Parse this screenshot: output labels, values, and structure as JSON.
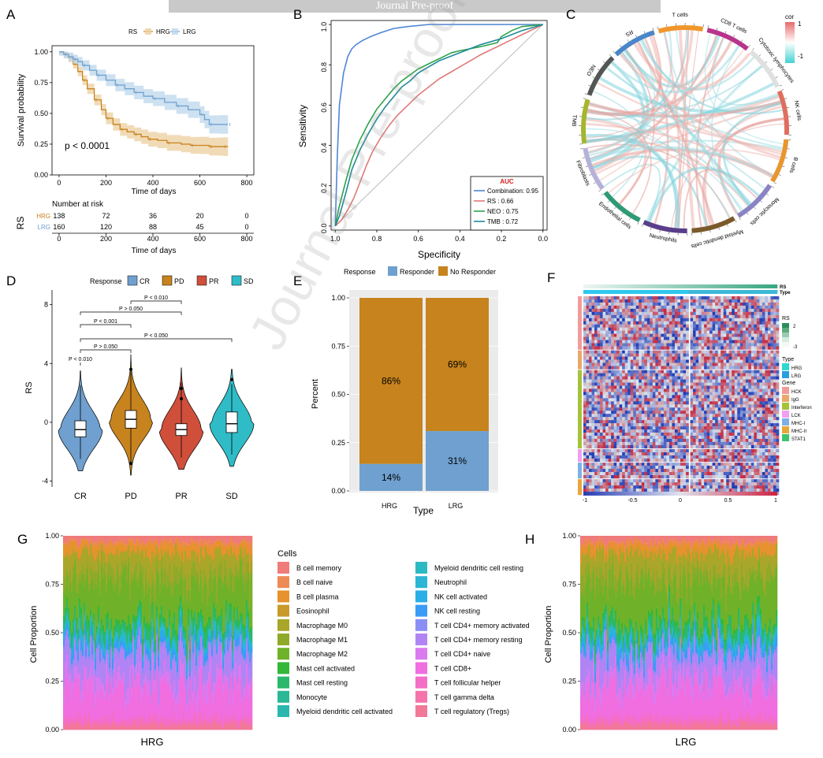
{
  "banner": "Journal Pre-proof",
  "watermark": "Journal Pre-proof",
  "colors": {
    "hrg": "#c7831d",
    "lrg": "#6fa0cf",
    "hrg_fill": "#eccf9f",
    "lrg_fill": "#bcd7ec"
  },
  "chart_data": [
    {
      "panel": "A",
      "type": "line",
      "legend_title": "RS",
      "legend_labels": [
        "HRG",
        "LRG"
      ],
      "xlabel": "Time of days",
      "ylabel": "Survival probability",
      "xticks": [
        "0",
        "200",
        "400",
        "600",
        "800"
      ],
      "yticks": [
        "0.00",
        "0.25",
        "0.50",
        "0.75",
        "1.00"
      ],
      "xlim": [
        -30,
        830
      ],
      "ylim": [
        0,
        1.05
      ],
      "pvalue": "p < 0.0001",
      "series": [
        {
          "name": "HRG",
          "x": [
            0,
            20,
            40,
            60,
            80,
            100,
            120,
            150,
            180,
            200,
            230,
            260,
            290,
            320,
            350,
            380,
            420,
            460,
            520,
            560,
            600,
            640,
            680,
            700,
            720
          ],
          "y": [
            1,
            0.98,
            0.95,
            0.9,
            0.84,
            0.77,
            0.7,
            0.61,
            0.53,
            0.46,
            0.41,
            0.37,
            0.35,
            0.33,
            0.31,
            0.29,
            0.28,
            0.26,
            0.25,
            0.24,
            0.24,
            0.23,
            0.23,
            0.23,
            0.23
          ]
        },
        {
          "name": "LRG",
          "x": [
            0,
            20,
            40,
            60,
            80,
            100,
            130,
            160,
            200,
            240,
            280,
            320,
            360,
            400,
            450,
            500,
            550,
            600,
            620,
            640,
            680,
            720
          ],
          "y": [
            1,
            0.98,
            0.96,
            0.94,
            0.92,
            0.89,
            0.85,
            0.81,
            0.77,
            0.73,
            0.7,
            0.67,
            0.64,
            0.62,
            0.59,
            0.56,
            0.53,
            0.49,
            0.45,
            0.41,
            0.41,
            0.41
          ]
        }
      ],
      "risk_table": {
        "title": "Number at risk",
        "axis_label": "RS",
        "xlabel": "Time of days",
        "xticks": [
          "0",
          "200",
          "400",
          "600",
          "800"
        ],
        "rows": [
          {
            "name": "HRG",
            "values": [
              "138",
              "72",
              "36",
              "20",
              "0"
            ]
          },
          {
            "name": "LRG",
            "values": [
              "160",
              "120",
              "88",
              "45",
              "0"
            ]
          }
        ]
      }
    },
    {
      "panel": "B",
      "type": "line",
      "xlabel": "Specificity",
      "ylabel": "Sensitivity",
      "xticks": [
        "1.0",
        "0.8",
        "0.6",
        "0.4",
        "0.2",
        "0.0"
      ],
      "yticks": [
        "0.0",
        "0.2",
        "0.4",
        "0.6",
        "0.8",
        "1.0"
      ],
      "xlim": [
        1.02,
        -0.02
      ],
      "ylim": [
        -0.02,
        1.02
      ],
      "legend_title": "AUC",
      "series": [
        {
          "name": "Combination: 0.95",
          "color": "#4e86d4",
          "x": [
            1,
            0.99,
            0.98,
            0.96,
            0.94,
            0.92,
            0.9,
            0.87,
            0.83,
            0.78,
            0.72,
            0.65,
            0.55,
            0.45,
            0.3,
            0.15,
            0
          ],
          "y": [
            0,
            0.35,
            0.6,
            0.76,
            0.84,
            0.88,
            0.9,
            0.92,
            0.94,
            0.96,
            0.98,
            0.99,
            1,
            1,
            1,
            1,
            1
          ]
        },
        {
          "name": "RS :  0.66",
          "color": "#e07a78",
          "x": [
            1,
            0.97,
            0.94,
            0.91,
            0.88,
            0.85,
            0.82,
            0.78,
            0.74,
            0.7,
            0.65,
            0.6,
            0.55,
            0.5,
            0.45,
            0.4,
            0.35,
            0.3,
            0.2,
            0.1,
            0
          ],
          "y": [
            0,
            0.03,
            0.08,
            0.14,
            0.22,
            0.3,
            0.37,
            0.44,
            0.5,
            0.55,
            0.6,
            0.65,
            0.69,
            0.73,
            0.76,
            0.79,
            0.82,
            0.85,
            0.9,
            0.95,
            1
          ]
        },
        {
          "name": "NEO :  0.75",
          "color": "#2ca34a",
          "x": [
            1,
            0.98,
            0.95,
            0.92,
            0.88,
            0.84,
            0.8,
            0.76,
            0.72,
            0.68,
            0.64,
            0.6,
            0.56,
            0.52,
            0.48,
            0.44,
            0.4,
            0.3,
            0.22,
            0.2,
            0.15,
            0.1,
            0
          ],
          "y": [
            0,
            0.1,
            0.22,
            0.33,
            0.43,
            0.51,
            0.58,
            0.63,
            0.68,
            0.72,
            0.75,
            0.78,
            0.8,
            0.82,
            0.84,
            0.86,
            0.87,
            0.89,
            0.91,
            0.94,
            0.97,
            0.99,
            1
          ]
        },
        {
          "name": "TMB :  0.72",
          "color": "#1f8a9a",
          "x": [
            1,
            0.98,
            0.95,
            0.92,
            0.88,
            0.84,
            0.8,
            0.76,
            0.72,
            0.68,
            0.64,
            0.6,
            0.55,
            0.5,
            0.45,
            0.4,
            0.35,
            0.3,
            0.2,
            0.1,
            0
          ],
          "y": [
            0,
            0.05,
            0.16,
            0.28,
            0.38,
            0.46,
            0.53,
            0.59,
            0.64,
            0.69,
            0.72,
            0.76,
            0.79,
            0.82,
            0.84,
            0.86,
            0.88,
            0.9,
            0.93,
            0.97,
            1
          ]
        }
      ]
    },
    {
      "panel": "C",
      "type": "chord",
      "legend_title": "cor",
      "legend_ticks": [
        "1",
        "-1"
      ],
      "sectors": [
        {
          "label": "CD8 T cells",
          "color": "#b8348c"
        },
        {
          "label": "Cytotoxic lymphocytes",
          "color": "#e0e0e0"
        },
        {
          "label": "NK cells",
          "color": "#e06e5e"
        },
        {
          "label": "B cells",
          "color": "#e8962f"
        },
        {
          "label": "Monocytic cells",
          "color": "#8a84c4"
        },
        {
          "label": "Myeloid dendritic cells",
          "color": "#7a5a2a"
        },
        {
          "label": "Neutrophils",
          "color": "#5a3e8a"
        },
        {
          "label": "Endothelial cells",
          "color": "#2f9a76"
        },
        {
          "label": "Fibroblasts",
          "color": "#b6b1d8"
        },
        {
          "label": "TMB",
          "color": "#a4b62e"
        },
        {
          "label": "NEO",
          "color": "#555555"
        },
        {
          "label": "RS",
          "color": "#4a86c8"
        },
        {
          "label": "T cells",
          "color": "#f0962a"
        }
      ]
    },
    {
      "panel": "D",
      "type": "violin",
      "legend_title": "Response",
      "categories": [
        "CR",
        "PD",
        "PR",
        "SD"
      ],
      "colors": [
        "#6fa0cf",
        "#c7831d",
        "#cf4f3b",
        "#2fbcc7"
      ],
      "ylabel": "RS",
      "yticks": [
        "-4",
        "0",
        "4",
        "8"
      ],
      "ylim": [
        -4.4,
        9
      ],
      "median": [
        -0.5,
        0.2,
        -0.5,
        -0.1
      ],
      "q1": [
        -1.0,
        -0.4,
        -0.9,
        -0.7
      ],
      "q3": [
        0.1,
        0.8,
        -0.1,
        0.7
      ],
      "whisker_low": [
        -2.5,
        -2.8,
        -2.4,
        -2.2
      ],
      "whisker_high": [
        2.5,
        3.6,
        2.7,
        2.6
      ],
      "outliers": [
        [],
        [
          3.6,
          -2.8
        ],
        [
          2.3,
          1.6
        ],
        [
          2.9
        ]
      ],
      "comparisons": [
        {
          "a": 2,
          "b": 3,
          "label": "P < 0.010"
        },
        {
          "a": 1,
          "b": 3,
          "label": "P > 0.050"
        },
        {
          "a": 1,
          "b": 2,
          "label": "P < 0.001"
        },
        {
          "a": 1,
          "b": 4,
          "label": "P < 0.050"
        },
        {
          "a": 0,
          "b": 2,
          "label": "P > 0.050"
        },
        {
          "a": 0,
          "b": 1,
          "label": "P < 0.010"
        }
      ]
    },
    {
      "panel": "E",
      "type": "bar",
      "legend_title": "Response",
      "legend_labels": [
        "Responder",
        "No Responder"
      ],
      "categories": [
        "HRG",
        "LRG"
      ],
      "series": [
        {
          "name": "Responder",
          "values": [
            0.14,
            0.31
          ]
        },
        {
          "name": "No Responder",
          "values": [
            0.86,
            0.69
          ]
        }
      ],
      "labels": [
        [
          "14%",
          "86%"
        ],
        [
          "31%",
          "69%"
        ]
      ],
      "xlabel": "Type",
      "ylabel": "Percent",
      "yticks": [
        "0.00",
        "0.25",
        "0.50",
        "0.75",
        "1.00"
      ],
      "ylim": [
        0,
        1
      ]
    },
    {
      "panel": "F",
      "type": "heatmap",
      "annotation_labels": [
        "RS",
        "Type"
      ],
      "legend_rs_title": "RS",
      "legend_rs_ticks": [
        "2",
        "-3"
      ],
      "legend_type_title": "Type",
      "legend_type": [
        "HRG",
        "LRG"
      ],
      "legend_gene_title": "Gene",
      "genes": [
        {
          "name": "HCK",
          "color": "#f29b9b"
        },
        {
          "name": "IgG",
          "color": "#e9a86a"
        },
        {
          "name": "Interferon",
          "color": "#a5c23a"
        },
        {
          "name": "LCK",
          "color": "#f09ff0"
        },
        {
          "name": "MHC-I",
          "color": "#7cb0e6"
        },
        {
          "name": "MHC-II",
          "color": "#e8a63a"
        },
        {
          "name": "STAT1",
          "color": "#3ec46d"
        }
      ],
      "scale_ticks": [
        "-1",
        "-0.5",
        "0",
        "0.5",
        "1"
      ]
    },
    {
      "panel": "G",
      "type": "bar",
      "ylabel": "Cell  Proportion",
      "xlabel": "HRG",
      "yticks": [
        "0.00",
        "0.25",
        "0.50",
        "0.75",
        "1.00"
      ],
      "ylim": [
        0,
        1
      ]
    },
    {
      "panel": "H",
      "type": "bar",
      "ylabel": "Cell  Proportion",
      "xlabel": "LRG",
      "yticks": [
        "0.00",
        "0.25",
        "0.50",
        "0.75",
        "1.00"
      ],
      "ylim": [
        0,
        1
      ]
    }
  ],
  "panel_letters": [
    "A",
    "B",
    "C",
    "D",
    "E",
    "F",
    "G",
    "H"
  ],
  "cells_legend": {
    "title": "Cells",
    "items": [
      {
        "name": "B cell memory",
        "color": "#f07b7b"
      },
      {
        "name": "B cell naive",
        "color": "#ee8a55"
      },
      {
        "name": "B cell plasma",
        "color": "#e6922d"
      },
      {
        "name": "Eosinophil",
        "color": "#c99a2a"
      },
      {
        "name": "Macrophage M0",
        "color": "#a9a62a"
      },
      {
        "name": "Macrophage M1",
        "color": "#8faa2a"
      },
      {
        "name": "Macrophage M2",
        "color": "#6fb22a"
      },
      {
        "name": "Mast cell activated",
        "color": "#33b83a"
      },
      {
        "name": "Mast cell resting",
        "color": "#2ab86c"
      },
      {
        "name": "Monocyte",
        "color": "#2ab896"
      },
      {
        "name": "Myeloid dendritic cell activated",
        "color": "#2ab8ae"
      },
      {
        "name": "Myeloid dendritic cell resting",
        "color": "#2bbac3"
      },
      {
        "name": "Neutrophil",
        "color": "#2bb6d6"
      },
      {
        "name": "NK cell activated",
        "color": "#2aaee8"
      },
      {
        "name": "NK cell resting",
        "color": "#3a9cf5"
      },
      {
        "name": "T cell CD4+ memory activated",
        "color": "#8a8ff5"
      },
      {
        "name": "T cell CD4+ memory resting",
        "color": "#b184f5"
      },
      {
        "name": "T cell CD4+ naive",
        "color": "#da7af0"
      },
      {
        "name": "T cell CD8+",
        "color": "#f06ee0"
      },
      {
        "name": "T cell follicular helper",
        "color": "#f46ec6"
      },
      {
        "name": "T cell gamma delta",
        "color": "#f573aa"
      },
      {
        "name": "T cell regulatory (Tregs)",
        "color": "#f27898"
      }
    ],
    "mean_props": [
      0.03,
      0.015,
      0.05,
      0.005,
      0.1,
      0.06,
      0.2,
      0.02,
      0.05,
      0.01,
      0.005,
      0.01,
      0.02,
      0.02,
      0.03,
      0.02,
      0.12,
      0.06,
      0.16,
      0.03,
      0.01,
      0.025
    ]
  }
}
